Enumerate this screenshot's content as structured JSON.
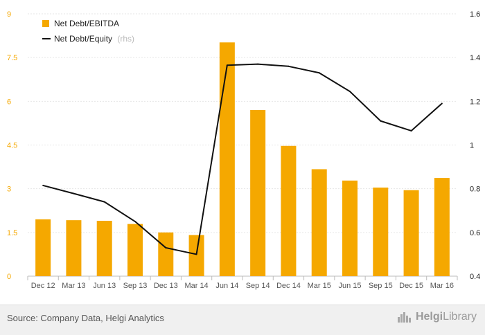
{
  "chart_data": {
    "type": "bar",
    "categories": [
      "Dec 12",
      "Mar 13",
      "Jun 13",
      "Sep 13",
      "Dec 13",
      "Mar 14",
      "Jun 14",
      "Sep 14",
      "Dec 14",
      "Mar 15",
      "Jun 15",
      "Sep 15",
      "Dec 15",
      "Mar 16"
    ],
    "series": [
      {
        "name": "Net Debt/EBITDA",
        "type": "bar",
        "axis": "left",
        "color": "#f5a800",
        "values": [
          1.95,
          1.92,
          1.9,
          1.79,
          1.5,
          1.41,
          8.02,
          5.7,
          4.47,
          3.67,
          3.28,
          3.04,
          2.95,
          3.37
        ]
      },
      {
        "name": "Net Debt/Equity",
        "name_suffix": "(rhs)",
        "type": "line",
        "axis": "right",
        "color": "#111111",
        "values": [
          0.815,
          0.778,
          0.74,
          0.65,
          0.53,
          0.5,
          1.365,
          1.37,
          1.36,
          1.33,
          1.245,
          1.11,
          1.065,
          1.19
        ]
      }
    ],
    "y_left": {
      "ylim": [
        0,
        9
      ],
      "ticks": [
        "0",
        "1.5",
        "3",
        "4.5",
        "6",
        "7.5",
        "9"
      ],
      "tick_values": [
        0,
        1.5,
        3,
        4.5,
        6,
        7.5,
        9
      ],
      "color": "#f5a800"
    },
    "y_right": {
      "ylim": [
        0.4,
        1.6
      ],
      "ticks": [
        "0.4",
        "0.6",
        "0.8",
        "1",
        "1.2",
        "1.4",
        "1.6"
      ],
      "tick_values": [
        0.4,
        0.6,
        0.8,
        1,
        1.2,
        1.4,
        1.6
      ]
    },
    "grid": true,
    "legend_position": "top-left"
  },
  "footer": {
    "source": "Source: Company Data, Helgi Analytics",
    "brand": "HelgiLibrary",
    "brand_bold": "Helgi",
    "brand_light": "Library"
  }
}
